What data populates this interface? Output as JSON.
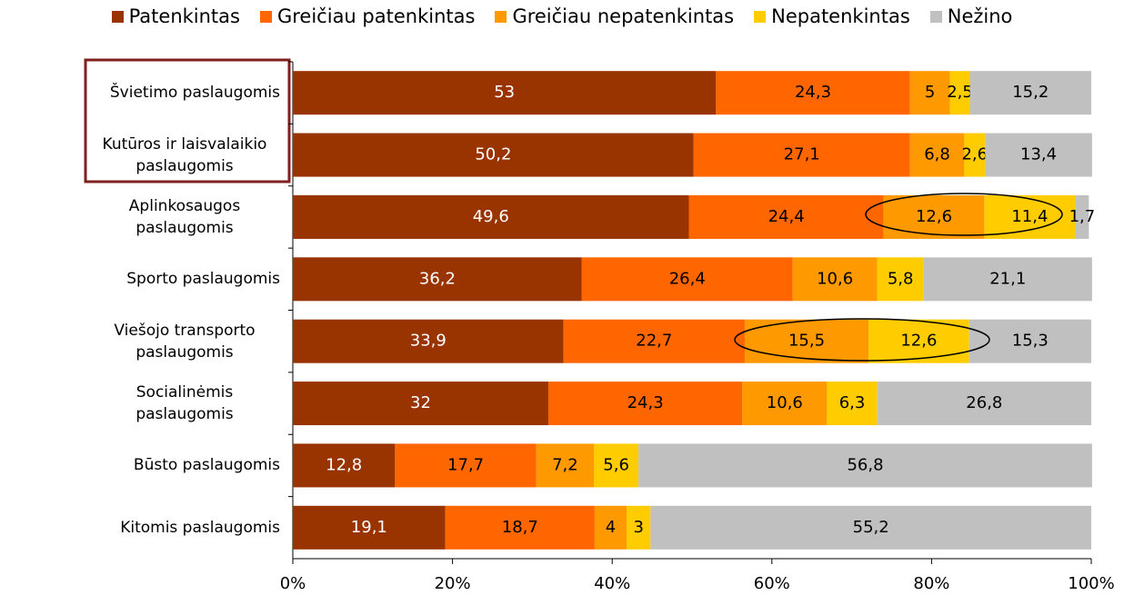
{
  "chart_data": {
    "type": "stacked-bar-horizontal",
    "categories": [
      "Švietimo paslaugomis",
      "Kutūros ir laisvalaikio paslaugomis",
      "Aplinkosaugos paslaugomis",
      "Sporto paslaugomis",
      "Viešojo transporto paslaugomis",
      "Socialinėmis paslaugomis",
      "Būsto paslaugomis",
      "Kitomis paslaugomis"
    ],
    "series": [
      {
        "name": "Patenkintas",
        "color": "#993300",
        "values": [
          53,
          50.2,
          49.6,
          36.2,
          33.9,
          32,
          12.8,
          19.1
        ],
        "value_labels": [
          "53",
          "50,2",
          "49,6",
          "36,2",
          "33,9",
          "32",
          "12,8",
          "19,1"
        ]
      },
      {
        "name": "Greičiau patenkintas",
        "color": "#FF6600",
        "values": [
          24.3,
          27.1,
          24.4,
          26.4,
          22.7,
          24.3,
          17.7,
          18.7
        ],
        "value_labels": [
          "24,3",
          "27,1",
          "24,4",
          "26,4",
          "22,7",
          "24,3",
          "17,7",
          "18,7"
        ]
      },
      {
        "name": "Greičiau nepatenkintas",
        "color": "#FF9900",
        "values": [
          5,
          6.8,
          12.6,
          10.6,
          15.5,
          10.6,
          7.2,
          4
        ],
        "value_labels": [
          "5",
          "6,8",
          "12,6",
          "10,6",
          "15,5",
          "10,6",
          "7,2",
          "4"
        ]
      },
      {
        "name": "Nepatenkintas",
        "color": "#FFCC00",
        "values": [
          2.5,
          2.6,
          11.4,
          5.8,
          12.6,
          6.3,
          5.6,
          3
        ],
        "value_labels": [
          "2,5",
          "2,6",
          "11,4",
          "5,8",
          "12,6",
          "6,3",
          "5,6",
          "3"
        ]
      },
      {
        "name": "Nežino",
        "color": "#C0C0C0",
        "values": [
          15.2,
          13.4,
          1.7,
          21.1,
          15.3,
          26.8,
          56.8,
          55.2
        ],
        "value_labels": [
          "15,2",
          "13,4",
          "1,7",
          "21,1",
          "15,3",
          "26,8",
          "56,8",
          "55,2"
        ]
      }
    ],
    "xlim": [
      0,
      100
    ],
    "xticks": [
      {
        "value": 0,
        "label": "0%"
      },
      {
        "value": 20,
        "label": "20%"
      },
      {
        "value": 40,
        "label": "40%"
      },
      {
        "value": 60,
        "label": "60%"
      },
      {
        "value": 80,
        "label": "80%"
      },
      {
        "value": 100,
        "label": "100%"
      }
    ],
    "legend": "top"
  }
}
